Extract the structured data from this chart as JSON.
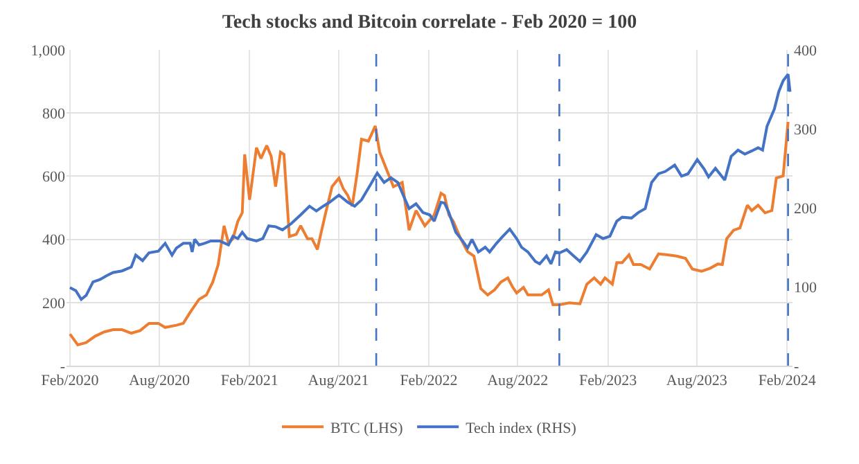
{
  "chart_data": {
    "type": "line",
    "title": "Tech stocks and Bitcoin correlate - Feb 2020 = 100",
    "xlim": [
      "2020-01-25",
      "2024-02-12"
    ],
    "xticks": [
      {
        "value": "2020-02-01",
        "label": "Feb/2020"
      },
      {
        "value": "2020-08-01",
        "label": "Aug/2020"
      },
      {
        "value": "2021-02-01",
        "label": "Feb/2021"
      },
      {
        "value": "2021-08-01",
        "label": "Aug/2021"
      },
      {
        "value": "2022-02-01",
        "label": "Feb/2022"
      },
      {
        "value": "2022-08-01",
        "label": "Aug/2022"
      },
      {
        "value": "2023-02-01",
        "label": "Feb/2023"
      },
      {
        "value": "2023-08-01",
        "label": "Aug/2023"
      },
      {
        "value": "2024-02-01",
        "label": "Feb/2024"
      }
    ],
    "ylim": [
      0,
      1000
    ],
    "yticks": [
      {
        "value": 0,
        "label": "-"
      },
      200,
      400,
      600,
      800,
      {
        "value": 1000,
        "label": "1,000"
      }
    ],
    "y2lim": [
      0,
      400
    ],
    "y2ticks": [
      {
        "value": 0,
        "label": "-"
      },
      100,
      200,
      300,
      400
    ],
    "grid": true,
    "legend": "bottom",
    "marker": "none",
    "line_style": "solid",
    "series": [
      {
        "name": "BTC (LHS)",
        "color": "#ed7d31",
        "x": [
          "2020-02-01",
          "2020-02-17",
          "2020-03-05",
          "2020-03-23",
          "2020-04-11",
          "2020-04-29",
          "2020-05-17",
          "2020-06-05",
          "2020-06-23",
          "2020-07-11",
          "2020-07-30",
          "2020-08-13",
          "2020-09-05",
          "2020-09-19",
          "2020-10-03",
          "2020-10-21",
          "2020-11-05",
          "2020-11-18",
          "2020-11-29",
          "2020-12-11",
          "2020-12-20",
          "2020-12-29",
          "2021-01-08",
          "2021-01-17",
          "2021-01-22",
          "2021-02-01",
          "2021-02-15",
          "2021-02-24",
          "2021-03-08",
          "2021-03-17",
          "2021-03-26",
          "2021-04-05",
          "2021-04-12",
          "2021-04-23",
          "2021-05-07",
          "2021-05-16",
          "2021-05-30",
          "2021-06-08",
          "2021-06-19",
          "2021-06-26",
          "2021-07-06",
          "2021-07-19",
          "2021-08-02",
          "2021-08-11",
          "2021-08-20",
          "2021-08-29",
          "2021-09-08",
          "2021-09-17",
          "2021-10-01",
          "2021-10-15",
          "2021-10-24",
          "2021-11-07",
          "2021-11-21",
          "2021-12-09",
          "2021-12-23",
          "2022-01-06",
          "2022-01-24",
          "2022-02-12",
          "2022-02-26",
          "2022-03-05",
          "2022-03-14",
          "2022-03-23",
          "2022-04-07",
          "2022-04-21",
          "2022-05-04",
          "2022-05-18",
          "2022-06-01",
          "2022-06-15",
          "2022-06-28",
          "2022-07-12",
          "2022-07-21",
          "2022-07-30",
          "2022-08-13",
          "2022-08-22",
          "2022-09-06",
          "2022-09-19",
          "2022-10-03",
          "2022-10-12",
          "2022-10-26",
          "2022-11-14",
          "2022-12-06",
          "2022-12-20",
          "2023-01-04",
          "2023-01-17",
          "2023-01-26",
          "2023-02-10",
          "2023-02-19",
          "2023-03-02",
          "2023-03-16",
          "2023-03-25",
          "2023-04-09",
          "2023-04-27",
          "2023-05-15",
          "2023-06-03",
          "2023-06-21",
          "2023-07-09",
          "2023-07-23",
          "2023-08-11",
          "2023-08-29",
          "2023-09-13",
          "2023-09-22",
          "2023-10-01",
          "2023-10-15",
          "2023-10-28",
          "2023-11-12",
          "2023-11-21",
          "2023-12-04",
          "2023-12-18",
          "2024-01-01",
          "2024-01-10",
          "2024-01-24",
          "2024-02-03"
        ],
        "values": [
          100,
          66,
          73,
          93,
          107,
          114,
          114,
          103,
          111,
          134,
          134,
          121,
          128,
          134,
          169,
          210,
          224,
          265,
          320,
          443,
          388,
          402,
          457,
          484,
          669,
          525,
          690,
          656,
          697,
          663,
          567,
          676,
          669,
          409,
          416,
          443,
          402,
          402,
          368,
          416,
          484,
          567,
          594,
          560,
          539,
          505,
          608,
          717,
          711,
          759,
          676,
          621,
          567,
          580,
          429,
          491,
          443,
          477,
          546,
          539,
          477,
          457,
          402,
          361,
          347,
          244,
          224,
          240,
          265,
          278,
          251,
          230,
          248,
          224,
          224,
          224,
          240,
          193,
          193,
          199,
          196,
          258,
          278,
          258,
          278,
          258,
          326,
          326,
          351,
          320,
          320,
          306,
          354,
          351,
          347,
          340,
          306,
          299,
          309,
          322,
          320,
          402,
          429,
          436,
          508,
          491,
          508,
          484,
          491,
          594,
          601,
          772
        ]
      },
      {
        "name": "Tech index (RHS)",
        "color": "#4472c4",
        "axis": "y2",
        "x": [
          "2020-02-01",
          "2020-02-13",
          "2020-02-24",
          "2020-03-05",
          "2020-03-19",
          "2020-04-02",
          "2020-04-16",
          "2020-04-29",
          "2020-05-17",
          "2020-06-05",
          "2020-06-14",
          "2020-06-28",
          "2020-07-11",
          "2020-07-30",
          "2020-08-13",
          "2020-08-27",
          "2020-09-05",
          "2020-09-19",
          "2020-10-03",
          "2020-10-07",
          "2020-10-12",
          "2020-10-21",
          "2020-11-01",
          "2020-11-14",
          "2020-12-02",
          "2020-12-20",
          "2020-12-29",
          "2021-01-08",
          "2021-01-17",
          "2021-01-27",
          "2021-02-15",
          "2021-02-28",
          "2021-03-12",
          "2021-03-26",
          "2021-04-09",
          "2021-04-27",
          "2021-05-16",
          "2021-06-03",
          "2021-06-17",
          "2021-07-01",
          "2021-07-14",
          "2021-08-02",
          "2021-08-20",
          "2021-09-03",
          "2021-09-17",
          "2021-10-05",
          "2021-10-19",
          "2021-11-02",
          "2021-11-16",
          "2021-11-30",
          "2021-12-13",
          "2021-12-23",
          "2022-01-06",
          "2022-01-20",
          "2022-02-03",
          "2022-02-12",
          "2022-02-26",
          "2022-03-05",
          "2022-03-14",
          "2022-03-28",
          "2022-04-11",
          "2022-04-21",
          "2022-04-30",
          "2022-05-13",
          "2022-05-27",
          "2022-06-05",
          "2022-06-19",
          "2022-07-02",
          "2022-07-16",
          "2022-07-30",
          "2022-08-09",
          "2022-08-22",
          "2022-09-06",
          "2022-09-15",
          "2022-09-29",
          "2022-10-08",
          "2022-10-17",
          "2022-10-26",
          "2022-11-09",
          "2022-11-23",
          "2022-12-06",
          "2022-12-20",
          "2023-01-08",
          "2023-01-22",
          "2023-02-05",
          "2023-02-19",
          "2023-03-02",
          "2023-03-21",
          "2023-04-04",
          "2023-04-18",
          "2023-05-01",
          "2023-05-15",
          "2023-05-29",
          "2023-06-17",
          "2023-07-01",
          "2023-07-14",
          "2023-08-02",
          "2023-08-16",
          "2023-08-25",
          "2023-09-08",
          "2023-09-27",
          "2023-10-10",
          "2023-10-24",
          "2023-11-07",
          "2023-11-21",
          "2023-12-04",
          "2023-12-13",
          "2023-12-22",
          "2024-01-06",
          "2024-01-15",
          "2024-01-24",
          "2024-02-03",
          "2024-02-07"
        ],
        "values": [
          99,
          95,
          84,
          89,
          106,
          109,
          114,
          118,
          120,
          125,
          140,
          133,
          143,
          145,
          155,
          140,
          149,
          155,
          155,
          144,
          160,
          153,
          155,
          158,
          158,
          153,
          164,
          161,
          169,
          161,
          158,
          161,
          177,
          176,
          172,
          180,
          191,
          202,
          196,
          202,
          207,
          216,
          207,
          202,
          210,
          229,
          244,
          232,
          238,
          232,
          213,
          199,
          205,
          194,
          191,
          183,
          207,
          206,
          194,
          169,
          158,
          149,
          160,
          144,
          150,
          144,
          155,
          164,
          173,
          161,
          150,
          144,
          132,
          129,
          139,
          129,
          144,
          143,
          147,
          139,
          132,
          144,
          166,
          161,
          164,
          183,
          188,
          187,
          194,
          199,
          232,
          243,
          246,
          254,
          240,
          243,
          261,
          249,
          239,
          250,
          235,
          265,
          273,
          268,
          272,
          276,
          273,
          303,
          325,
          347,
          361,
          369,
          347
        ]
      }
    ],
    "ref_lines": [
      {
        "axis": "x",
        "value": "2021-10-17",
        "color": "#4472c4",
        "line_style": "dashed"
      },
      {
        "axis": "x",
        "value": "2022-10-25",
        "color": "#4472c4",
        "line_style": "dashed"
      },
      {
        "axis": "x",
        "value": "2024-02-03",
        "color": "#4472c4",
        "line_style": "dashed"
      }
    ]
  }
}
